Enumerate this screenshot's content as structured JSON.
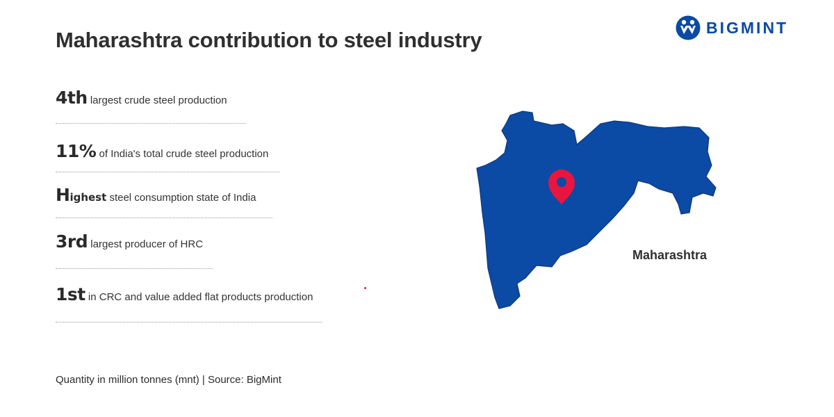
{
  "title": "Maharashtra contribution to steel industry",
  "logo": {
    "text": "BIGMINT",
    "icon": "bigmint-people-logo-icon",
    "color": "#0b4aa5"
  },
  "stats": [
    {
      "highlight": "4th",
      "text": " largest crude steel production"
    },
    {
      "highlight": "11%",
      "text": " of India's total crude steel production"
    },
    {
      "highlight_initial": "H",
      "highlight_rest": "ighest",
      "text": " steel consumption state of India"
    },
    {
      "highlight": "3rd",
      "text": " largest producer of HRC"
    },
    {
      "highlight": "1st",
      "text": " in CRC and value added flat products production"
    }
  ],
  "map": {
    "label": "Maharashtra",
    "fill_color": "#0b4aa5",
    "pin_color": "#e8163f",
    "icon": "location-pin-icon"
  },
  "footer": {
    "source": "Quantity in million tonnes (mnt) | Source: BigMint"
  }
}
